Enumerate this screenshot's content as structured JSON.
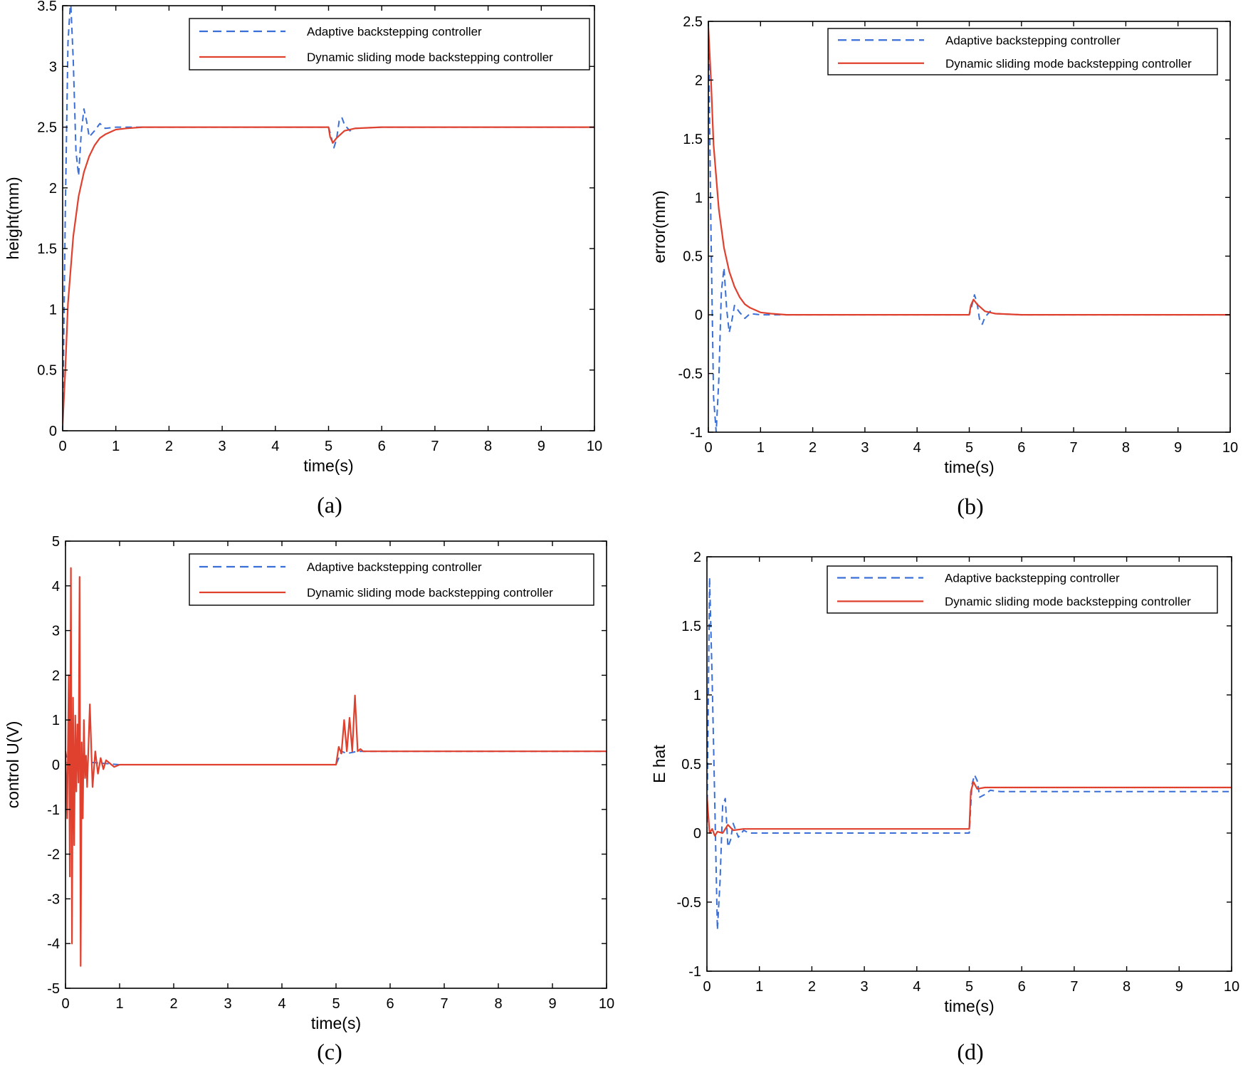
{
  "colors": {
    "adaptive": "#3a6fd8",
    "dsm": "#e0402e",
    "axis": "#000000"
  },
  "legend": {
    "adaptive": "Adaptive backstepping controller",
    "dsm": "Dynamic sliding mode backstepping controller"
  },
  "chart_data": [
    {
      "id": "a",
      "type": "line",
      "caption": "(a)",
      "xlabel": "time(s)",
      "ylabel": "height(mm)",
      "xlim": [
        0,
        10
      ],
      "ylim": [
        0,
        3.5
      ],
      "xticks": [
        0,
        1,
        2,
        3,
        4,
        5,
        6,
        7,
        8,
        9,
        10
      ],
      "yticks": [
        0,
        0.5,
        1,
        1.5,
        2,
        2.5,
        3,
        3.5
      ],
      "ytick_labels": [
        "0",
        "0.5",
        "1",
        "1.5",
        "2",
        "2.5",
        "3",
        "3.5"
      ],
      "series": [
        {
          "name": "Adaptive backstepping controller",
          "style": "dashed",
          "x": [
            0,
            0.05,
            0.1,
            0.15,
            0.2,
            0.25,
            0.3,
            0.35,
            0.4,
            0.45,
            0.5,
            0.6,
            0.7,
            0.8,
            1.0,
            1.5,
            3.0,
            5.0,
            5.05,
            5.1,
            5.15,
            5.2,
            5.25,
            5.3,
            5.4,
            5.5,
            6.0,
            10
          ],
          "y": [
            0,
            1.8,
            3.2,
            3.55,
            3.05,
            2.3,
            2.1,
            2.45,
            2.65,
            2.55,
            2.42,
            2.47,
            2.53,
            2.49,
            2.5,
            2.5,
            2.5,
            2.5,
            2.42,
            2.33,
            2.4,
            2.55,
            2.58,
            2.52,
            2.47,
            2.49,
            2.5,
            2.5
          ]
        },
        {
          "name": "Dynamic sliding mode backstepping controller",
          "style": "solid",
          "x": [
            0,
            0.05,
            0.1,
            0.2,
            0.3,
            0.4,
            0.5,
            0.6,
            0.7,
            0.8,
            0.9,
            1.0,
            1.2,
            1.5,
            2.0,
            3.0,
            5.0,
            5.03,
            5.08,
            5.15,
            5.3,
            5.5,
            6.0,
            10
          ],
          "y": [
            0.05,
            0.5,
            1.05,
            1.6,
            1.93,
            2.13,
            2.26,
            2.35,
            2.41,
            2.44,
            2.46,
            2.48,
            2.49,
            2.5,
            2.5,
            2.5,
            2.5,
            2.42,
            2.37,
            2.41,
            2.47,
            2.49,
            2.5,
            2.5
          ]
        }
      ]
    },
    {
      "id": "b",
      "type": "line",
      "caption": "(b)",
      "xlabel": "time(s)",
      "ylabel": "error(mm)",
      "xlim": [
        0,
        10
      ],
      "ylim": [
        -1,
        2.5
      ],
      "xticks": [
        0,
        1,
        2,
        3,
        4,
        5,
        6,
        7,
        8,
        9,
        10
      ],
      "yticks": [
        -1,
        -0.5,
        0,
        0.5,
        1,
        1.5,
        2,
        2.5
      ],
      "ytick_labels": [
        "-1",
        "-0.5",
        "0",
        "0.5",
        "1",
        "1.5",
        "2",
        "2.5"
      ],
      "series": [
        {
          "name": "Adaptive backstepping controller",
          "style": "dashed",
          "x": [
            0,
            0.05,
            0.1,
            0.15,
            0.2,
            0.25,
            0.3,
            0.35,
            0.4,
            0.45,
            0.5,
            0.6,
            0.7,
            0.8,
            1.0,
            1.5,
            5.0,
            5.05,
            5.1,
            5.15,
            5.2,
            5.25,
            5.3,
            5.4,
            5.5,
            6.0,
            10
          ],
          "y": [
            2.5,
            0.7,
            -0.7,
            -1.0,
            -0.55,
            0.2,
            0.4,
            0.05,
            -0.15,
            -0.05,
            0.08,
            0.02,
            -0.03,
            0.01,
            0,
            0,
            0,
            0.08,
            0.17,
            0.1,
            -0.05,
            -0.08,
            -0.02,
            0.03,
            0.01,
            0,
            0
          ]
        },
        {
          "name": "Dynamic sliding mode backstepping controller",
          "style": "solid",
          "x": [
            0,
            0.05,
            0.1,
            0.2,
            0.3,
            0.4,
            0.5,
            0.6,
            0.7,
            0.8,
            0.9,
            1.0,
            1.2,
            1.5,
            2.0,
            5.0,
            5.03,
            5.08,
            5.15,
            5.3,
            5.5,
            6.0,
            10
          ],
          "y": [
            2.45,
            2.0,
            1.45,
            0.9,
            0.57,
            0.37,
            0.24,
            0.15,
            0.09,
            0.06,
            0.04,
            0.02,
            0.01,
            0,
            0,
            0,
            0.08,
            0.13,
            0.09,
            0.03,
            0.01,
            0,
            0
          ]
        }
      ]
    },
    {
      "id": "c",
      "type": "line",
      "caption": "(c)",
      "xlabel": "time(s)",
      "ylabel": "control U(V)",
      "xlim": [
        0,
        10
      ],
      "ylim": [
        -5,
        5
      ],
      "xticks": [
        0,
        1,
        2,
        3,
        4,
        5,
        6,
        7,
        8,
        9,
        10
      ],
      "yticks": [
        -5,
        -4,
        -3,
        -2,
        -1,
        0,
        1,
        2,
        3,
        4,
        5
      ],
      "ytick_labels": [
        "-5",
        "-4",
        "-3",
        "-2",
        "-1",
        "0",
        "1",
        "2",
        "3",
        "4",
        "5"
      ],
      "series": [
        {
          "name": "Adaptive backstepping controller",
          "style": "dashed",
          "x": [
            0,
            0.1,
            0.2,
            0.3,
            0.5,
            0.8,
            1.0,
            5.0,
            5.1,
            5.2,
            5.4,
            6.0,
            10
          ],
          "y": [
            0.3,
            -0.4,
            0.2,
            -0.1,
            0.05,
            0.02,
            0,
            0,
            0.3,
            0.25,
            0.3,
            0.3,
            0.3
          ]
        },
        {
          "name": "Dynamic sliding mode backstepping controller",
          "style": "solid",
          "x": [
            0,
            0.03,
            0.06,
            0.08,
            0.1,
            0.12,
            0.14,
            0.16,
            0.18,
            0.2,
            0.22,
            0.24,
            0.26,
            0.28,
            0.3,
            0.32,
            0.34,
            0.36,
            0.38,
            0.4,
            0.45,
            0.5,
            0.55,
            0.6,
            0.65,
            0.7,
            0.75,
            0.8,
            0.9,
            1.0,
            1.2,
            5.0,
            5.05,
            5.1,
            5.15,
            5.2,
            5.25,
            5.3,
            5.35,
            5.4,
            5.45,
            5.5,
            6.0,
            10
          ],
          "y": [
            0.3,
            -1.2,
            2.0,
            -2.5,
            4.4,
            -4.0,
            1.5,
            -1.8,
            1.1,
            -0.6,
            0.9,
            -0.4,
            4.2,
            -4.5,
            0.5,
            -1.2,
            1.0,
            -0.3,
            0.2,
            -0.5,
            1.35,
            -0.5,
            0.3,
            -0.2,
            0.15,
            -0.1,
            0.1,
            0.05,
            -0.05,
            0,
            0,
            0,
            0.4,
            0.25,
            1.0,
            0.3,
            1.05,
            0.3,
            1.55,
            0.3,
            0.35,
            0.3,
            0.3,
            0.3
          ]
        }
      ]
    },
    {
      "id": "d",
      "type": "line",
      "caption": "(d)",
      "xlabel": "time(s)",
      "ylabel": "E hat",
      "xlim": [
        0,
        10
      ],
      "ylim": [
        -1,
        2
      ],
      "xticks": [
        0,
        1,
        2,
        3,
        4,
        5,
        6,
        7,
        8,
        9,
        10
      ],
      "yticks": [
        -1,
        -0.5,
        0,
        0.5,
        1,
        1.5,
        2
      ],
      "ytick_labels": [
        "-1",
        "-0.5",
        "0",
        "0.5",
        "1",
        "1.5",
        "2"
      ],
      "series": [
        {
          "name": "Adaptive backstepping controller",
          "style": "dashed",
          "x": [
            0,
            0.05,
            0.1,
            0.15,
            0.2,
            0.25,
            0.3,
            0.35,
            0.4,
            0.45,
            0.5,
            0.6,
            0.7,
            0.8,
            1.0,
            5.0,
            5.05,
            5.1,
            5.15,
            5.2,
            5.3,
            5.4,
            5.6,
            10
          ],
          "y": [
            0,
            1.85,
            1.1,
            0.2,
            -0.7,
            -0.35,
            0.2,
            0.25,
            -0.1,
            -0.05,
            0.07,
            -0.03,
            0.02,
            0,
            0,
            0,
            0.35,
            0.42,
            0.38,
            0.26,
            0.28,
            0.31,
            0.3,
            0.3
          ]
        },
        {
          "name": "Dynamic sliding mode backstepping controller",
          "style": "solid",
          "x": [
            0,
            0.05,
            0.1,
            0.15,
            0.2,
            0.3,
            0.4,
            0.5,
            0.7,
            1.0,
            5.0,
            5.03,
            5.08,
            5.15,
            5.3,
            5.6,
            10
          ],
          "y": [
            0.27,
            0.0,
            0.03,
            -0.02,
            0.01,
            0.0,
            0.06,
            0.02,
            0.03,
            0.03,
            0.03,
            0.3,
            0.37,
            0.32,
            0.33,
            0.33,
            0.33
          ]
        }
      ]
    }
  ]
}
